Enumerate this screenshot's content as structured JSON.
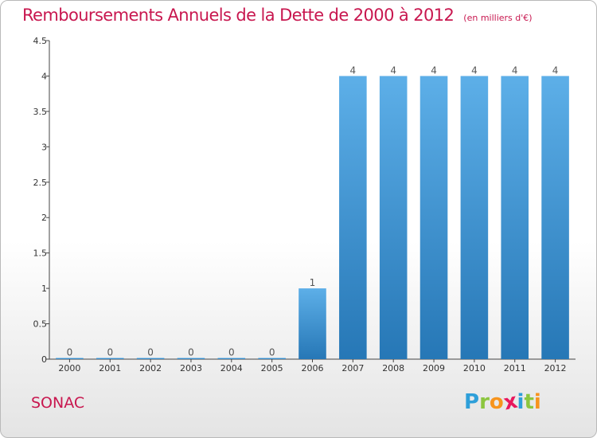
{
  "header": {
    "title": "Remboursements Annuels de la Dette de 2000 à 2012",
    "unit": "(en milliers d'€)"
  },
  "footer": {
    "city": "SONAC",
    "logo_letters": [
      "P",
      "r",
      "o",
      "x",
      "i",
      "t",
      "i"
    ],
    "logo_colors": [
      "#2e9fd9",
      "#8cc63f",
      "#f7941d",
      "#e8175d",
      "#2e9fd9",
      "#8cc63f",
      "#f7941d"
    ]
  },
  "colors": {
    "bar_top": "#5dafe8",
    "bar_bottom": "#2677b6",
    "title": "#c8174f"
  },
  "chart_data": {
    "type": "bar",
    "categories": [
      "2000",
      "2001",
      "2002",
      "2003",
      "2004",
      "2005",
      "2006",
      "2007",
      "2008",
      "2009",
      "2010",
      "2011",
      "2012"
    ],
    "values": [
      0,
      0,
      0,
      0,
      0,
      0,
      1,
      4,
      4,
      4,
      4,
      4,
      4
    ],
    "value_labels": [
      "0",
      "0",
      "0",
      "0",
      "0",
      "0",
      "1",
      "4",
      "4",
      "4",
      "4",
      "4",
      "4"
    ],
    "y_ticks": [
      "0",
      "0.5",
      "1",
      "1.5",
      "2",
      "2.5",
      "3",
      "3.5",
      "4",
      "4.5"
    ],
    "ylim": [
      0,
      4.5
    ],
    "grid": false,
    "legend": "none"
  }
}
